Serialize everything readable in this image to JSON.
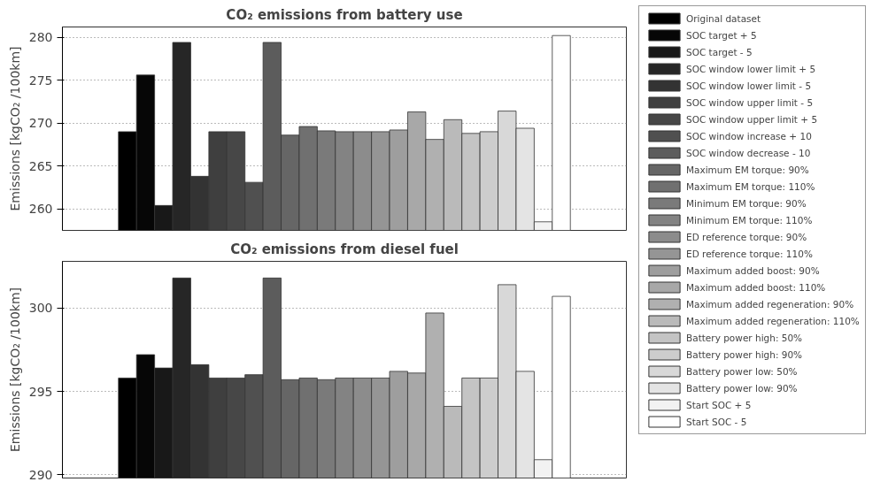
{
  "chart_data": [
    {
      "type": "bar",
      "title": "CO₂ emissions from battery use",
      "ylabel": "Emissions [kgCO₂ /100km]",
      "categories": [
        null
      ],
      "ylim": [
        257.5,
        281.2
      ],
      "yticks": [
        260,
        265,
        270,
        275,
        280
      ],
      "grid": "y",
      "legend": "right",
      "tick_labels": "y",
      "series": [
        {
          "name": "Original dataset",
          "color": "#000000",
          "values": [
            269.0
          ]
        },
        {
          "name": "SOC target + 5",
          "color": "#060606",
          "values": [
            275.6
          ]
        },
        {
          "name": "SOC target - 5",
          "color": "#181818",
          "values": [
            260.4
          ]
        },
        {
          "name": "SOC window lower limit + 5",
          "color": "#262626",
          "values": [
            279.4
          ]
        },
        {
          "name": "SOC window lower limit - 5",
          "color": "#333333",
          "values": [
            263.8
          ]
        },
        {
          "name": "SOC window upper limit - 5",
          "color": "#3f3f3f",
          "values": [
            269.0
          ]
        },
        {
          "name": "SOC window upper limit + 5",
          "color": "#474747",
          "values": [
            269.0
          ]
        },
        {
          "name": "SOC window increase + 10",
          "color": "#505050",
          "values": [
            263.1
          ]
        },
        {
          "name": "SOC window decrease - 10",
          "color": "#5c5c5c",
          "values": [
            279.4
          ]
        },
        {
          "name": "Maximum EM torque: 90%",
          "color": "#666666",
          "values": [
            268.6
          ]
        },
        {
          "name": "Maximum EM torque: 110%",
          "color": "#707070",
          "values": [
            269.6
          ]
        },
        {
          "name": "Minimum EM torque: 90%",
          "color": "#7a7a7a",
          "values": [
            269.1
          ]
        },
        {
          "name": "Minimum EM torque: 110%",
          "color": "#838383",
          "values": [
            269.0
          ]
        },
        {
          "name": "ED reference torque: 90%",
          "color": "#8c8c8c",
          "values": [
            269.0
          ]
        },
        {
          "name": "ED reference torque: 110%",
          "color": "#959595",
          "values": [
            269.0
          ]
        },
        {
          "name": "Maximum added boost: 90%",
          "color": "#9e9e9e",
          "values": [
            269.2
          ]
        },
        {
          "name": "Maximum added boost: 110%",
          "color": "#a8a8a8",
          "values": [
            271.3
          ]
        },
        {
          "name": "Maximum added regeneration: 90%",
          "color": "#b0b0b0",
          "values": [
            268.1
          ]
        },
        {
          "name": "Maximum added regeneration: 110%",
          "color": "#bababa",
          "values": [
            270.4
          ]
        },
        {
          "name": "Battery power high: 50%",
          "color": "#c4c4c4",
          "values": [
            268.8
          ]
        },
        {
          "name": "Battery power high: 90%",
          "color": "#cdcdcd",
          "values": [
            269.0
          ]
        },
        {
          "name": "Battery power low: 50%",
          "color": "#d8d8d8",
          "values": [
            271.4
          ]
        },
        {
          "name": "Battery power low: 90%",
          "color": "#e4e4e4",
          "values": [
            269.4
          ]
        },
        {
          "name": "Start SOC + 5",
          "color": "#f2f2f2",
          "values": [
            258.5
          ]
        },
        {
          "name": "Start SOC - 5",
          "color": "#ffffff",
          "values": [
            280.2
          ]
        }
      ]
    },
    {
      "type": "bar",
      "title": "CO₂ emissions from diesel fuel",
      "ylabel": "Emissions [kgCO₂ /100km]",
      "categories": [
        null
      ],
      "ylim": [
        289.8,
        302.8
      ],
      "yticks": [
        290,
        295,
        300
      ],
      "grid": "y",
      "tick_labels": "y",
      "series": [
        {
          "color": "#000000",
          "values": [
            295.8
          ]
        },
        {
          "color": "#060606",
          "values": [
            297.2
          ]
        },
        {
          "color": "#181818",
          "values": [
            296.4
          ]
        },
        {
          "color": "#262626",
          "values": [
            301.8
          ]
        },
        {
          "color": "#333333",
          "values": [
            296.6
          ]
        },
        {
          "color": "#3f3f3f",
          "values": [
            295.8
          ]
        },
        {
          "color": "#474747",
          "values": [
            295.8
          ]
        },
        {
          "color": "#505050",
          "values": [
            296.0
          ]
        },
        {
          "color": "#5c5c5c",
          "values": [
            301.8
          ]
        },
        {
          "color": "#666666",
          "values": [
            295.7
          ]
        },
        {
          "color": "#707070",
          "values": [
            295.8
          ]
        },
        {
          "color": "#7a7a7a",
          "values": [
            295.7
          ]
        },
        {
          "color": "#838383",
          "values": [
            295.8
          ]
        },
        {
          "color": "#8c8c8c",
          "values": [
            295.8
          ]
        },
        {
          "color": "#959595",
          "values": [
            295.8
          ]
        },
        {
          "color": "#9e9e9e",
          "values": [
            296.2
          ]
        },
        {
          "color": "#a8a8a8",
          "values": [
            296.1
          ]
        },
        {
          "color": "#b0b0b0",
          "values": [
            299.7
          ]
        },
        {
          "color": "#bababa",
          "values": [
            294.1
          ]
        },
        {
          "color": "#c4c4c4",
          "values": [
            295.8
          ]
        },
        {
          "color": "#cdcdcd",
          "values": [
            295.8
          ]
        },
        {
          "color": "#d8d8d8",
          "values": [
            301.4
          ]
        },
        {
          "color": "#e4e4e4",
          "values": [
            296.2
          ]
        },
        {
          "color": "#f2f2f2",
          "values": [
            290.9
          ]
        },
        {
          "color": "#ffffff",
          "values": [
            300.7
          ]
        }
      ]
    }
  ]
}
